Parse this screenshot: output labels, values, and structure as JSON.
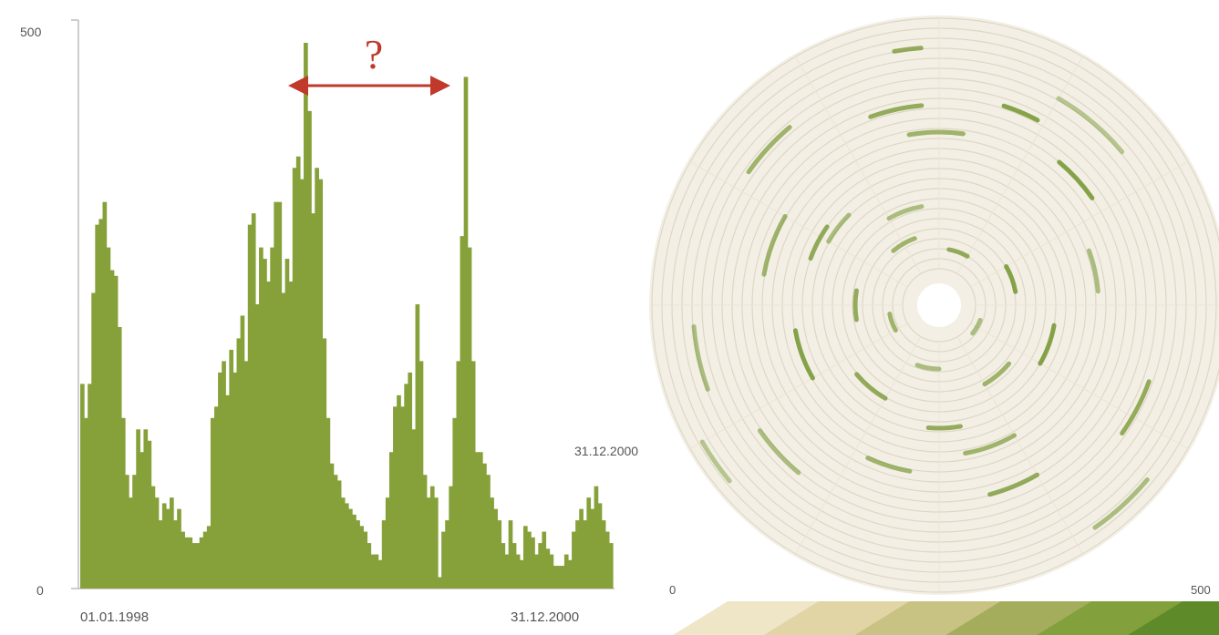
{
  "chart_data": [
    {
      "type": "bar",
      "ylim": [
        0,
        500
      ],
      "y_ticks": [
        "500",
        "0"
      ],
      "x_start_label": "01.01.1998",
      "x_end_label": "31.12.2000",
      "annotation": "?",
      "color": "#86a13a",
      "values": [
        180,
        150,
        180,
        260,
        320,
        325,
        340,
        300,
        280,
        275,
        230,
        150,
        100,
        80,
        100,
        140,
        120,
        140,
        130,
        90,
        80,
        60,
        75,
        70,
        80,
        60,
        70,
        50,
        45,
        45,
        40,
        40,
        45,
        50,
        55,
        150,
        160,
        190,
        200,
        170,
        210,
        190,
        220,
        240,
        200,
        320,
        330,
        250,
        300,
        290,
        270,
        300,
        340,
        340,
        260,
        290,
        270,
        370,
        380,
        360,
        480,
        420,
        330,
        370,
        360,
        220,
        150,
        110,
        100,
        95,
        80,
        75,
        70,
        65,
        60,
        55,
        50,
        40,
        30,
        30,
        25,
        60,
        80,
        120,
        160,
        170,
        160,
        180,
        190,
        140,
        250,
        200,
        100,
        80,
        90,
        80,
        10,
        50,
        60,
        90,
        150,
        200,
        310,
        450,
        300,
        200,
        120,
        120,
        110,
        100,
        80,
        70,
        60,
        40,
        30,
        60,
        40,
        30,
        25,
        55,
        50,
        45,
        30,
        40,
        50,
        35,
        30,
        20,
        20,
        20,
        30,
        25,
        50,
        60,
        70,
        60,
        80,
        70,
        90,
        75,
        60,
        50,
        40
      ]
    },
    {
      "type": "heatmap",
      "layout": "spiral",
      "center_label": "31.12.2000",
      "legend_min": "0",
      "legend_max": "500",
      "base_color": "#f2eee4",
      "ring_color": "#ddd7c6",
      "high_color": "#7a9a38",
      "legend_colors": [
        "#efe6c8",
        "#e1d4a5",
        "#c8c283",
        "#a4ad5c",
        "#82a03c",
        "#5f8a2a"
      ]
    }
  ]
}
